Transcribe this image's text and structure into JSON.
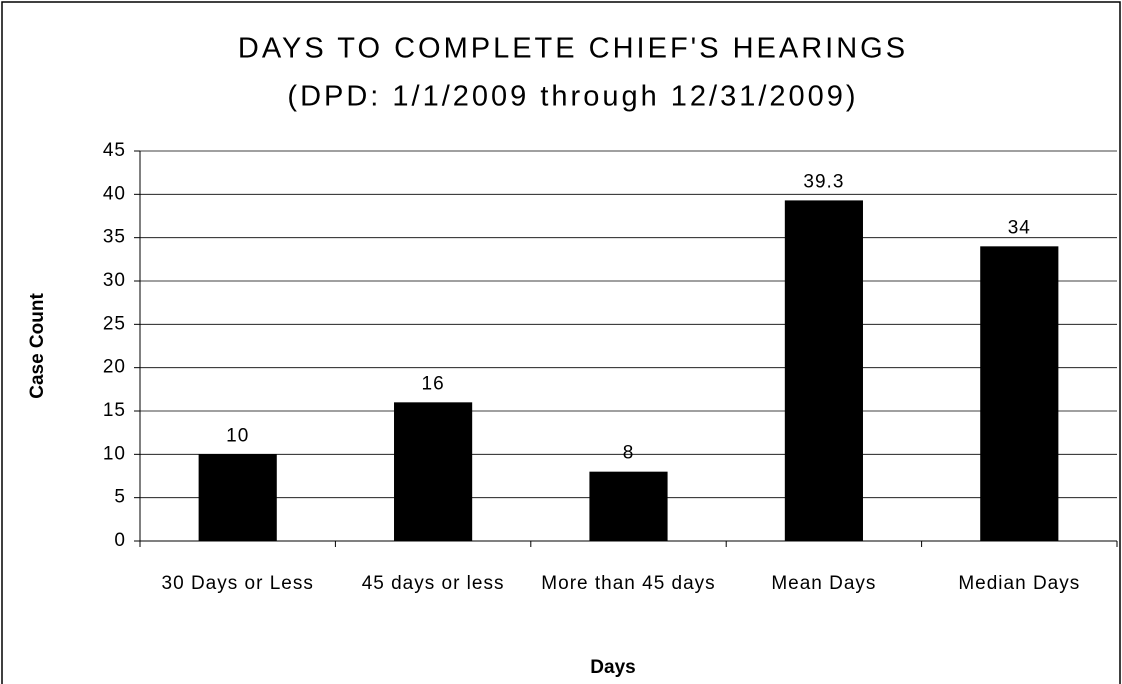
{
  "chart_data": {
    "type": "bar",
    "title": "DAYS TO COMPLETE CHIEF'S HEARINGS",
    "subtitle": "(DPD: 1/1/2009 through 12/31/2009)",
    "x_label": "Days",
    "y_label": "Case Count",
    "categories": [
      "30 Days or Less",
      "45 days or less",
      "More than 45 days",
      "Mean Days",
      "Median Days"
    ],
    "values": [
      10,
      16,
      8,
      39.3,
      34
    ],
    "color": "#000000",
    "ylim": [
      0,
      45
    ],
    "yticks": [
      0,
      5,
      10,
      15,
      20,
      25,
      30,
      35,
      40,
      45
    ],
    "grid": true
  }
}
